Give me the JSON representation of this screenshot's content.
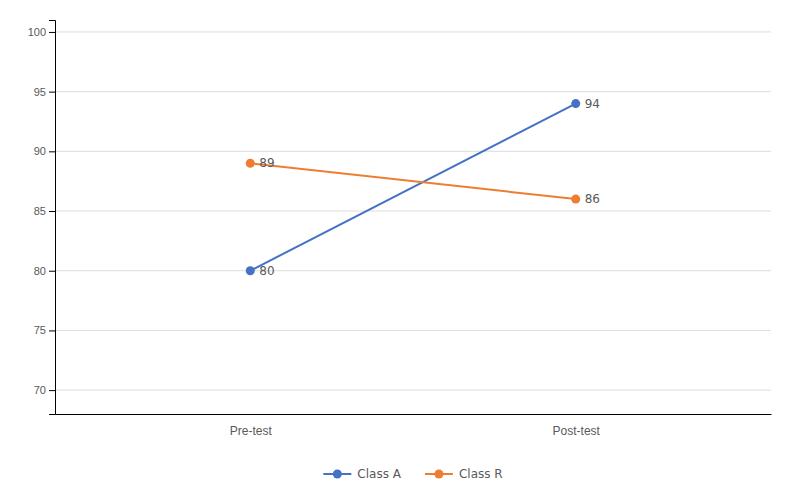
{
  "chart_data": {
    "type": "line",
    "categories": [
      "Pre-test",
      "Post-test"
    ],
    "series": [
      {
        "name": "Class A",
        "color": "#4472C4",
        "values": [
          80,
          94
        ],
        "marker": "circle"
      },
      {
        "name": "Class R",
        "color": "#ED7D31",
        "values": [
          89,
          86
        ],
        "marker": "circle"
      }
    ],
    "ylim": [
      68,
      101
    ],
    "yticks": [
      70,
      75,
      80,
      85,
      90,
      95,
      100
    ],
    "grid": true,
    "legend": "bottom",
    "data_labels": true
  }
}
